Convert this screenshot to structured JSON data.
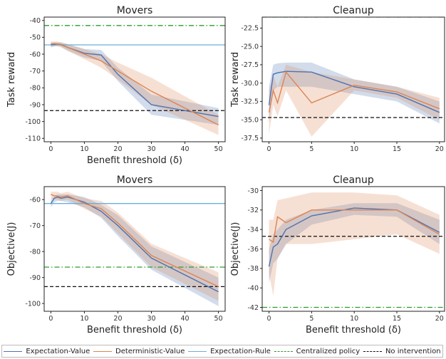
{
  "chart_data": [
    {
      "type": "line",
      "title": "Movers",
      "xlabel": "Benefit threshold (δ)",
      "ylabel": "Task reward",
      "xlim": [
        -2,
        52
      ],
      "ylim": [
        -112,
        -38
      ],
      "xticks": [
        0,
        10,
        20,
        30,
        40,
        50
      ],
      "yticks": [
        -40,
        -50,
        -60,
        -70,
        -80,
        -90,
        -100,
        -110
      ],
      "series": [
        {
          "name": "Expectation-Value",
          "color": "#4c72b0",
          "x": [
            0,
            1,
            2,
            3,
            5,
            10,
            15,
            20,
            30,
            50
          ],
          "y": [
            -54.5,
            -54.2,
            -54,
            -54.3,
            -56,
            -59.5,
            -60.5,
            -72,
            -90,
            -97
          ],
          "lower": [
            -56,
            -55.5,
            -55,
            -55.5,
            -58,
            -62,
            -64,
            -76,
            -96,
            -102
          ],
          "upper": [
            -53,
            -53,
            -53,
            -53,
            -54,
            -57,
            -57.5,
            -68,
            -84,
            -92
          ]
        },
        {
          "name": "Deterministic-Value",
          "color": "#dd8452",
          "x": [
            0,
            1,
            2,
            3,
            5,
            10,
            15,
            20,
            30,
            50
          ],
          "y": [
            -54,
            -53.8,
            -54,
            -54.5,
            -56,
            -60,
            -64,
            -70,
            -82,
            -102
          ],
          "lower": [
            -55.5,
            -55,
            -55.5,
            -56,
            -58,
            -63,
            -68,
            -75,
            -90,
            -108
          ],
          "upper": [
            -52.5,
            -52.5,
            -52.5,
            -53,
            -54,
            -57,
            -60,
            -65,
            -74,
            -96
          ]
        }
      ],
      "hlines": [
        {
          "name": "Expectation-Rule",
          "y": -54.5,
          "color": "#6ab0d8",
          "style": "solid"
        },
        {
          "name": "Centralized policy",
          "y": -43,
          "color": "#2a9d2a",
          "style": "dashdot"
        },
        {
          "name": "No intervention",
          "y": -93.5,
          "color": "#111111",
          "style": "dashed"
        }
      ]
    },
    {
      "type": "line",
      "title": "Cleanup",
      "xlabel": "",
      "ylabel": "Task reward",
      "xlim": [
        -0.8,
        20.6
      ],
      "ylim": [
        -38,
        -21
      ],
      "xticks": [
        0,
        5,
        10,
        15,
        20
      ],
      "yticks": [
        -22.5,
        -25.0,
        -27.5,
        -30.0,
        -32.5,
        -35.0,
        -37.5
      ],
      "ytickfmt": 1,
      "series": [
        {
          "name": "Expectation-Value",
          "color": "#4c72b0",
          "x": [
            0,
            0.5,
            1,
            2,
            5,
            10,
            15,
            20
          ],
          "y": [
            -33,
            -28.8,
            -28.6,
            -28.4,
            -28.5,
            -30.5,
            -31.5,
            -34
          ],
          "lower": [
            -35.5,
            -31,
            -30.5,
            -30.5,
            -30.5,
            -31.5,
            -32.5,
            -35.5
          ],
          "upper": [
            -30.5,
            -27.5,
            -27.3,
            -27.2,
            -27.2,
            -29.5,
            -30.5,
            -32.5
          ]
        },
        {
          "name": "Deterministic-Value",
          "color": "#dd8452",
          "x": [
            0,
            0.5,
            1,
            2,
            5,
            10,
            15,
            20
          ],
          "y": [
            -34,
            -31,
            -32.7,
            -28.5,
            -32.7,
            -30.3,
            -31.2,
            -33.5
          ],
          "lower": [
            -37,
            -33,
            -34.5,
            -31,
            -37.3,
            -31,
            -32,
            -35
          ],
          "upper": [
            -31,
            -29,
            -30.5,
            -27.5,
            -28.5,
            -29.5,
            -30.5,
            -32
          ]
        }
      ],
      "hlines": [
        {
          "name": "Centralized policy",
          "y": -21,
          "color": "#2a9d2a",
          "style": "dashdot"
        },
        {
          "name": "No intervention",
          "y": -34.7,
          "color": "#111111",
          "style": "dashed"
        }
      ]
    },
    {
      "type": "line",
      "title": "Movers",
      "xlabel": "Benefit threshold (δ)",
      "ylabel": "Objective(J)",
      "xlim": [
        -2,
        52
      ],
      "ylim": [
        -103,
        -55
      ],
      "xticks": [
        0,
        10,
        20,
        30,
        40,
        50
      ],
      "yticks": [
        -60,
        -70,
        -80,
        -90,
        -100
      ],
      "series": [
        {
          "name": "Expectation-Value",
          "color": "#4c72b0",
          "x": [
            0,
            1,
            2,
            3,
            5,
            10,
            15,
            20,
            30,
            50
          ],
          "y": [
            -61.5,
            -59.5,
            -59,
            -59.5,
            -59,
            -61,
            -64.5,
            -70,
            -82.5,
            -95.5
          ],
          "lower": [
            -63,
            -61,
            -60.5,
            -60.5,
            -61,
            -63,
            -67,
            -74,
            -87,
            -101
          ],
          "upper": [
            -60,
            -58.5,
            -58,
            -58,
            -58,
            -59,
            -62,
            -66,
            -78,
            -90
          ]
        },
        {
          "name": "Deterministic-Value",
          "color": "#dd8452",
          "x": [
            0,
            1,
            2,
            3,
            5,
            10,
            15,
            20,
            30,
            50
          ],
          "y": [
            -58,
            -58.5,
            -58.7,
            -59,
            -58.5,
            -61.5,
            -63.5,
            -69,
            -81.5,
            -93.5
          ],
          "lower": [
            -59.5,
            -60,
            -60,
            -60.5,
            -60,
            -63.5,
            -66.5,
            -73,
            -86,
            -99
          ],
          "upper": [
            -57,
            -57,
            -57,
            -57.5,
            -57,
            -59.5,
            -60.5,
            -65,
            -77,
            -88
          ]
        }
      ],
      "hlines": [
        {
          "name": "Expectation-Rule",
          "y": -61.5,
          "color": "#6ab0d8",
          "style": "solid"
        },
        {
          "name": "Centralized policy",
          "y": -86,
          "color": "#2a9d2a",
          "style": "dashdot"
        },
        {
          "name": "No intervention",
          "y": -93.5,
          "color": "#111111",
          "style": "dashed"
        }
      ]
    },
    {
      "type": "line",
      "title": "Cleanup",
      "xlabel": "Benefit threshold (δ)",
      "ylabel": "Objective(J)",
      "xlim": [
        -0.8,
        20.6
      ],
      "ylim": [
        -42.4,
        -29.6
      ],
      "xticks": [
        0,
        5,
        10,
        15,
        20
      ],
      "yticks": [
        -30,
        -32,
        -34,
        -36,
        -38,
        -40,
        -42
      ],
      "series": [
        {
          "name": "Expectation-Value",
          "color": "#4c72b0",
          "x": [
            0,
            0.5,
            1,
            2,
            5,
            10,
            15,
            20
          ],
          "y": [
            -37.8,
            -35.8,
            -35.5,
            -34,
            -32.6,
            -31.8,
            -32,
            -34.3
          ],
          "lower": [
            -39.5,
            -37.5,
            -37,
            -35.5,
            -33.5,
            -32.5,
            -32.7,
            -35.5
          ],
          "upper": [
            -36,
            -34.5,
            -34,
            -33,
            -32,
            -31.3,
            -31.3,
            -33
          ]
        },
        {
          "name": "Deterministic-Value",
          "color": "#dd8452",
          "x": [
            0,
            0.5,
            1,
            2,
            5,
            10,
            15,
            20
          ],
          "y": [
            -35,
            -35.3,
            -32.7,
            -33.3,
            -32,
            -32,
            -32,
            -34.5
          ],
          "lower": [
            -38.5,
            -40.8,
            -37,
            -35.5,
            -35.5,
            -35,
            -34.5,
            -36.5
          ],
          "upper": [
            -33,
            -33,
            -31,
            -30.8,
            -30.2,
            -30.2,
            -30.5,
            -32.5
          ]
        }
      ],
      "hlines": [
        {
          "name": "Centralized policy",
          "y": -42,
          "color": "#2a9d2a",
          "style": "dashdot"
        },
        {
          "name": "No intervention",
          "y": -34.7,
          "color": "#111111",
          "style": "dashed"
        }
      ]
    }
  ],
  "legend": {
    "placement": "bottom",
    "items": [
      {
        "label": "Expectation-Value",
        "color": "#4c72b0",
        "style": "solid"
      },
      {
        "label": "Deterministic-Value",
        "color": "#dd8452",
        "style": "solid"
      },
      {
        "label": "Expectation-Rule",
        "color": "#6ab0d8",
        "style": "solid"
      },
      {
        "label": "Centralized policy",
        "color": "#2a9d2a",
        "style": "dashdot"
      },
      {
        "label": "No intervention",
        "color": "#111111",
        "style": "dashed"
      }
    ]
  }
}
